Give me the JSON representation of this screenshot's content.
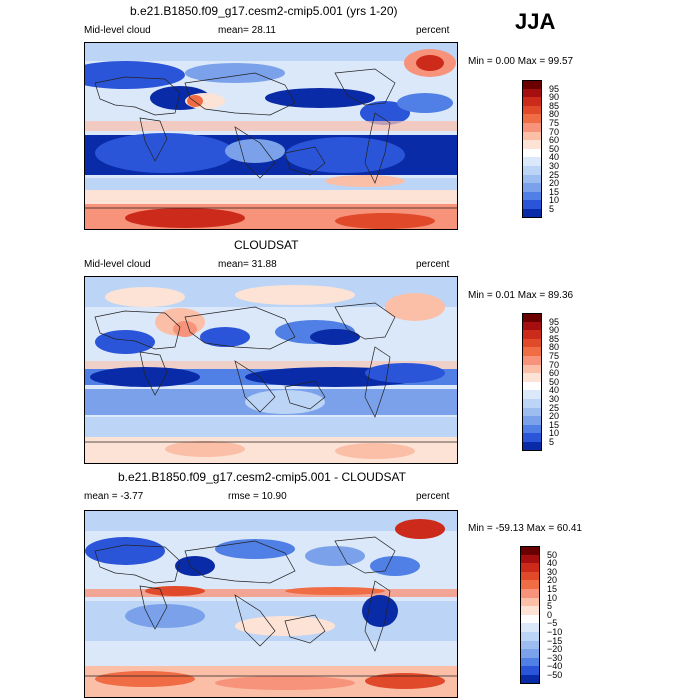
{
  "season": "JJA",
  "panels": [
    {
      "title": "b.e21.B1850.f09_g17.cesm2-cmip5.001 (yrs 1-20)",
      "left_label": "Mid-level cloud",
      "mid_label": "mean=  28.11",
      "right_label": "percent",
      "minmax": "Min =    0.00 Max =   99.57",
      "colorbar": {
        "labels": [
          "95",
          "90",
          "85",
          "80",
          "75",
          "70",
          "60",
          "50",
          "40",
          "30",
          "25",
          "20",
          "15",
          "10",
          "5"
        ],
        "colors": [
          "#6b0000",
          "#a50f0f",
          "#cc2a1a",
          "#e0492a",
          "#ef6c45",
          "#f7937a",
          "#fbbfa8",
          "#fde3d6",
          "#ffffff",
          "#dbe8fa",
          "#bcd4f5",
          "#9dbcf0",
          "#7aa1ea",
          "#5080e5",
          "#2a55d8",
          "#0a2ba8"
        ]
      },
      "map": "model"
    },
    {
      "title": "CLOUDSAT",
      "left_label": "Mid-level cloud",
      "mid_label": "mean=  31.88",
      "right_label": "percent",
      "minmax": "Min =    0.01 Max =   89.36",
      "colorbar": {
        "labels": [
          "95",
          "90",
          "85",
          "80",
          "75",
          "70",
          "60",
          "50",
          "40",
          "30",
          "25",
          "20",
          "15",
          "10",
          "5"
        ],
        "colors": [
          "#6b0000",
          "#a50f0f",
          "#cc2a1a",
          "#e0492a",
          "#ef6c45",
          "#f7937a",
          "#fbbfa8",
          "#fde3d6",
          "#ffffff",
          "#dbe8fa",
          "#bcd4f5",
          "#9dbcf0",
          "#7aa1ea",
          "#5080e5",
          "#2a55d8",
          "#0a2ba8"
        ]
      },
      "map": "obs"
    },
    {
      "title": "b.e21.B1850.f09_g17.cesm2-cmip5.001 - CLOUDSAT",
      "left_label": "mean =   -3.77",
      "mid_label": "rmse =   10.90",
      "right_label": "percent",
      "minmax": "Min = -59.13 Max =   60.41",
      "colorbar": {
        "labels": [
          "50",
          "40",
          "30",
          "20",
          "15",
          "10",
          "5",
          "0",
          "−5",
          "−10",
          "−15",
          "−20",
          "−30",
          "−40",
          "−50"
        ],
        "colors": [
          "#6b0000",
          "#a50f0f",
          "#cc2a1a",
          "#e0492a",
          "#ef6c45",
          "#f7937a",
          "#fbbfa8",
          "#fde3d6",
          "#ffffff",
          "#dbe8fa",
          "#bcd4f5",
          "#9dbcf0",
          "#7aa1ea",
          "#5080e5",
          "#2a55d8",
          "#0a2ba8"
        ]
      },
      "map": "diff"
    }
  ]
}
